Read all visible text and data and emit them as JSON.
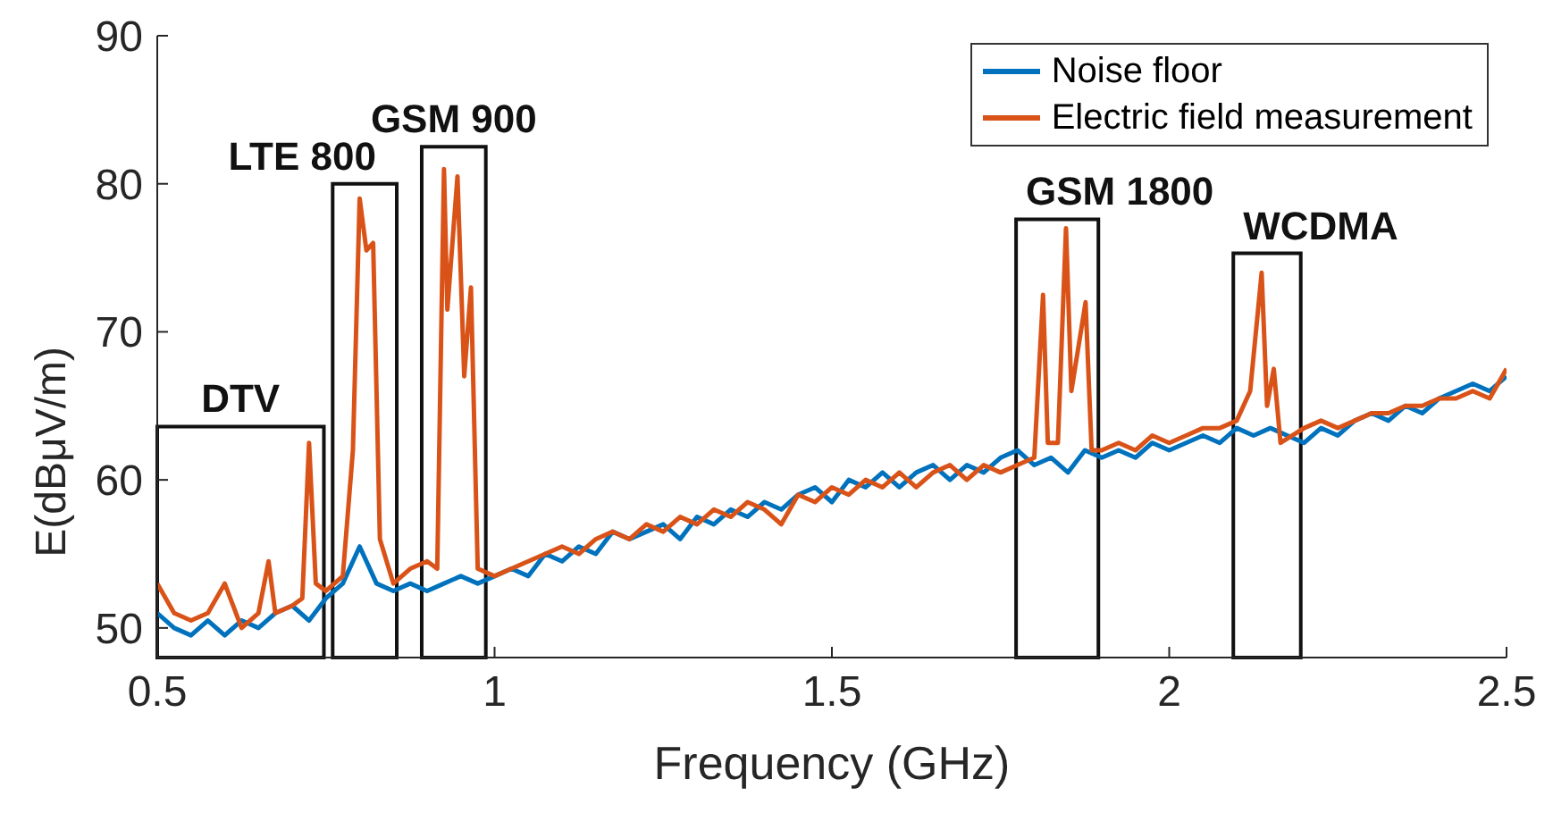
{
  "chart_data": {
    "type": "line",
    "xlabel": "Frequency (GHz)",
    "ylabel": "E(dBμV/m)",
    "xlim": [
      0.5,
      2.5
    ],
    "xticks": [
      0.5,
      1,
      1.5,
      2,
      2.5
    ],
    "ylim": [
      48,
      90
    ],
    "yticks": [
      50,
      60,
      70,
      80,
      90
    ],
    "grid": false,
    "legend": "top right",
    "line_style": "solid",
    "marker": "none",
    "series": [
      {
        "name": "Noise floor",
        "color": "#0072bd",
        "x": [
          0.5,
          0.525,
          0.55,
          0.575,
          0.6,
          0.625,
          0.65,
          0.675,
          0.7,
          0.725,
          0.75,
          0.775,
          0.8,
          0.825,
          0.85,
          0.875,
          0.9,
          0.925,
          0.95,
          0.975,
          1.0,
          1.025,
          1.05,
          1.075,
          1.1,
          1.125,
          1.15,
          1.175,
          1.2,
          1.225,
          1.25,
          1.275,
          1.3,
          1.325,
          1.35,
          1.375,
          1.4,
          1.425,
          1.45,
          1.475,
          1.5,
          1.525,
          1.55,
          1.575,
          1.6,
          1.625,
          1.65,
          1.675,
          1.7,
          1.725,
          1.75,
          1.775,
          1.8,
          1.825,
          1.85,
          1.875,
          1.9,
          1.925,
          1.95,
          1.975,
          2.0,
          2.025,
          2.05,
          2.075,
          2.1,
          2.125,
          2.15,
          2.175,
          2.2,
          2.225,
          2.25,
          2.275,
          2.3,
          2.325,
          2.35,
          2.375,
          2.4,
          2.425,
          2.45,
          2.475,
          2.5
        ],
        "values": [
          51,
          50,
          49.5,
          50.5,
          49.5,
          50.5,
          50,
          51,
          51.5,
          50.5,
          52,
          53,
          55.5,
          53,
          52.5,
          53,
          52.5,
          53,
          53.5,
          53,
          53.5,
          54,
          53.5,
          55,
          54.5,
          55.5,
          55,
          56.5,
          56,
          56.5,
          57,
          56,
          57.5,
          57,
          58,
          57.5,
          58.5,
          58,
          59,
          59.5,
          58.5,
          60,
          59.5,
          60.5,
          59.5,
          60.5,
          61,
          60,
          61,
          60.5,
          61.5,
          62,
          61,
          61.5,
          60.5,
          62,
          61.5,
          62,
          61.5,
          62.5,
          62,
          62.5,
          63,
          62.5,
          63.5,
          63,
          63.5,
          63,
          62.5,
          63.5,
          63,
          64,
          64.5,
          64,
          65,
          64.5,
          65.5,
          66,
          66.5,
          66,
          67
        ]
      },
      {
        "name": "Electric field measurement",
        "color": "#d95319",
        "x": [
          0.5,
          0.525,
          0.55,
          0.575,
          0.6,
          0.625,
          0.65,
          0.665,
          0.675,
          0.7,
          0.715,
          0.725,
          0.735,
          0.75,
          0.775,
          0.79,
          0.8,
          0.81,
          0.82,
          0.83,
          0.85,
          0.875,
          0.9,
          0.915,
          0.925,
          0.93,
          0.945,
          0.955,
          0.965,
          0.975,
          1.0,
          1.025,
          1.05,
          1.075,
          1.1,
          1.125,
          1.15,
          1.175,
          1.2,
          1.225,
          1.25,
          1.275,
          1.3,
          1.325,
          1.35,
          1.375,
          1.4,
          1.425,
          1.45,
          1.475,
          1.5,
          1.525,
          1.55,
          1.575,
          1.6,
          1.625,
          1.65,
          1.675,
          1.7,
          1.725,
          1.75,
          1.775,
          1.8,
          1.813,
          1.82,
          1.835,
          1.847,
          1.855,
          1.876,
          1.885,
          1.9,
          1.925,
          1.95,
          1.975,
          2.0,
          2.025,
          2.05,
          2.075,
          2.1,
          2.12,
          2.137,
          2.145,
          2.155,
          2.165,
          2.2,
          2.225,
          2.25,
          2.275,
          2.3,
          2.325,
          2.35,
          2.375,
          2.4,
          2.425,
          2.45,
          2.475,
          2.5
        ],
        "values": [
          53,
          51,
          50.5,
          51,
          53,
          50,
          51,
          54.5,
          51,
          51.5,
          52,
          62.5,
          53,
          52.5,
          53.5,
          62,
          79,
          75.5,
          76,
          56,
          53,
          54,
          54.5,
          54,
          81,
          71.5,
          80.5,
          67,
          73,
          54,
          53.5,
          54,
          54.5,
          55,
          55.5,
          55,
          56,
          56.5,
          56,
          57,
          56.5,
          57.5,
          57,
          58,
          57.5,
          58.5,
          58,
          57,
          59,
          58.5,
          59.5,
          59,
          60,
          59.5,
          60.5,
          59.5,
          60.5,
          61,
          60,
          61,
          60.5,
          61,
          61.5,
          72.5,
          62.5,
          62.5,
          77,
          66,
          72,
          62,
          62,
          62.5,
          62,
          63,
          62.5,
          63,
          63.5,
          63.5,
          64,
          66,
          74,
          65,
          67.5,
          62.5,
          63.5,
          64,
          63.5,
          64,
          64.5,
          64.5,
          65,
          65,
          65.5,
          65.5,
          66,
          65.5,
          67.5
        ]
      }
    ],
    "bands": [
      {
        "axis": "x",
        "from": 0.5,
        "to": 0.747
      },
      {
        "axis": "x",
        "from": 0.76,
        "to": 0.855
      },
      {
        "axis": "x",
        "from": 0.892,
        "to": 0.987
      },
      {
        "axis": "x",
        "from": 1.773,
        "to": 1.895
      },
      {
        "axis": "x",
        "from": 2.095,
        "to": 2.195
      }
    ],
    "annotations": [
      {
        "text": "DTV",
        "x": 0.6235,
        "y": 63.6
      },
      {
        "text": "LTE 800",
        "x": 0.8075,
        "y": 80
      },
      {
        "text": "GSM 900",
        "x": 0.9395,
        "y": 82.5
      },
      {
        "text": "GSM 1800",
        "x": 1.834,
        "y": 77.6
      },
      {
        "text": "WCDMA",
        "x": 2.145,
        "y": 75.3
      }
    ]
  }
}
